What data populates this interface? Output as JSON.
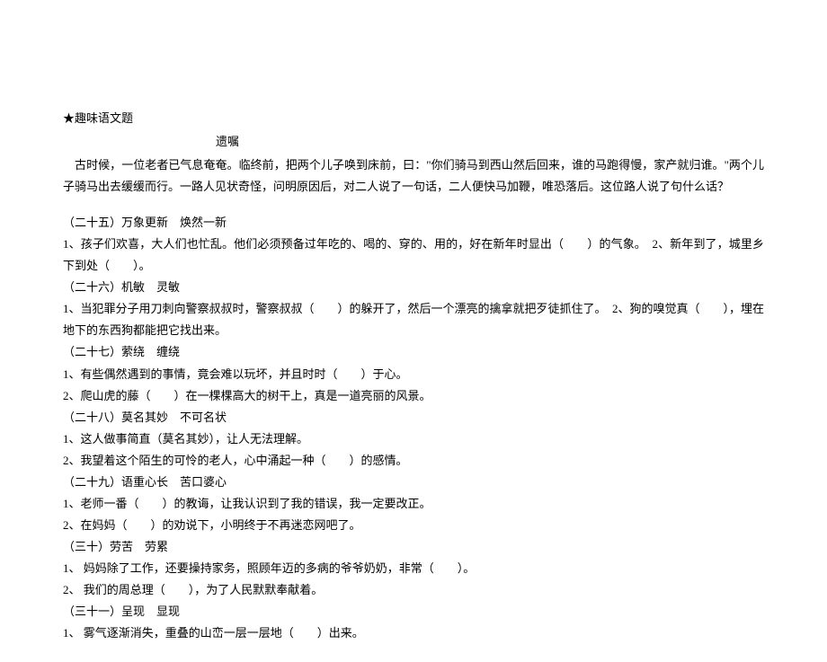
{
  "header": {
    "title": "★趣味语文题",
    "subtitle": "遗嘱"
  },
  "intro": {
    "text": "古时候，一位老者已气息奄奄。临终前，把两个儿子唤到床前，曰：\"你们骑马到西山然后回来，谁的马跑得慢，家产就归谁。\"两个儿子骑马出去缓缓而行。一路人见状奇怪，问明原因后，对二人说了一句话，二人便快马加鞭，唯恐落后。这位路人说了句什么话？"
  },
  "sections": [
    {
      "heading": "（二十五）万象更新　焕然一新",
      "lines": [
        "1、孩子们欢喜，大人们也忙乱。他们必须预备过年吃的、喝的、穿的、用的，好在新年时显出（　　）的气象。　2、新年到了，城里乡下到处（　　）。"
      ]
    },
    {
      "heading": "（二十六）机敏　灵敏",
      "lines": [
        "1、当犯罪分子用刀刺向警察叔叔时，警察叔叔（　　）的躲开了，然后一个漂亮的擒拿就把歹徒抓住了。　2、狗的嗅觉真（　　），埋在地下的东西狗都能把它找出来。"
      ]
    },
    {
      "heading": "（二十七）萦绕　缠绕",
      "lines": [
        "1、有些偶然遇到的事情，竟会难以玩坏，并且时时（　　）于心。",
        "2、爬山虎的藤（　　）在一棵棵高大的树干上，真是一道亮丽的风景。"
      ]
    },
    {
      "heading": "（二十八）莫名其妙　不可名状",
      "lines": [
        "1、这人做事简直（莫名其妙），让人无法理解。",
        "2、我望着这个陌生的可怜的老人，心中涌起一种（　　）的感情。"
      ]
    },
    {
      "heading": "（二十九）语重心长　苦口婆心",
      "lines": [
        "1、老师一番（　　）的教诲，让我认识到了我的错误，我一定要改正。",
        "2、在妈妈（　　）的劝说下，小明终于不再迷恋网吧了。"
      ]
    },
    {
      "heading": "（三十）劳苦　劳累",
      "lines": [
        "1、 妈妈除了工作，还要操持家务，照顾年迈的多病的爷爷奶奶，非常（　　）。",
        "2、 我们的周总理（　　），为了人民默默奉献着。"
      ]
    },
    {
      "heading": "（三十一）呈现　显现",
      "lines": [
        "1、 雾气逐渐消失，重叠的山峦一层一层地（　　）出来。"
      ]
    }
  ]
}
